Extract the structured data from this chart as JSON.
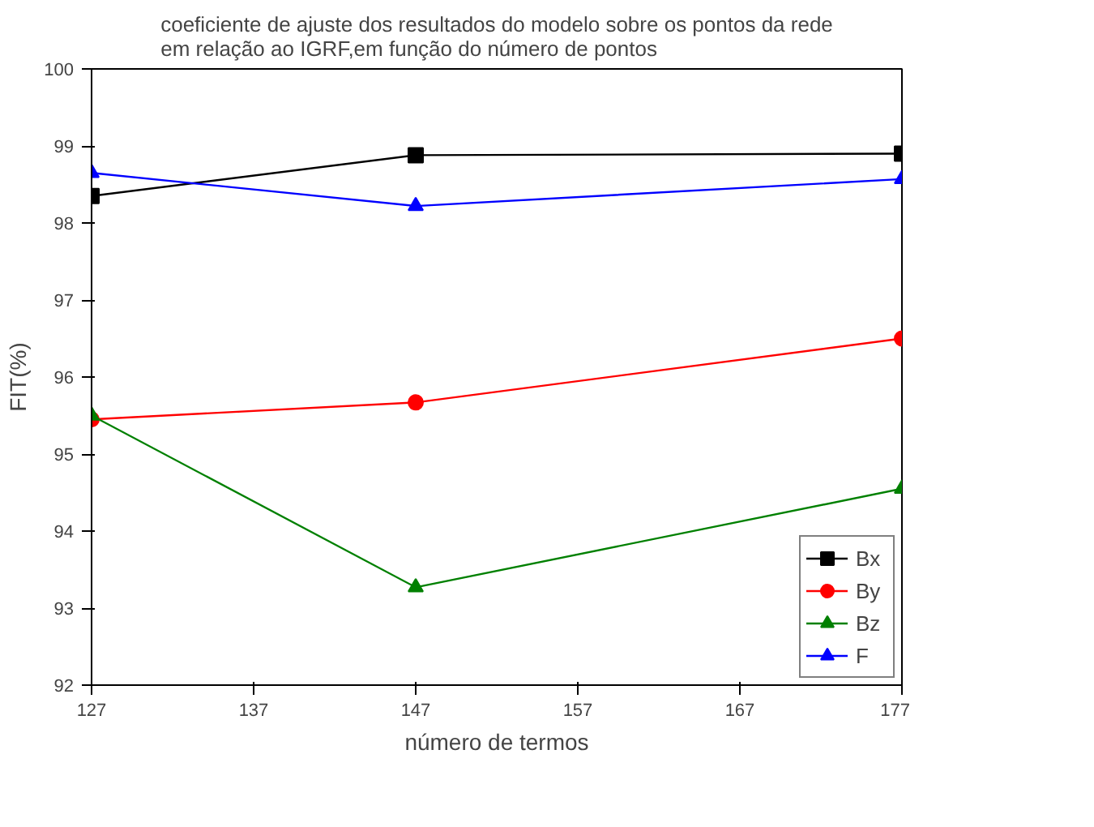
{
  "chart_data": {
    "type": "line",
    "title": "coeficiente de ajuste dos resultados do modelo sobre os pontos da rede\nem relação ao IGRF,em função do número de pontos",
    "xlabel": "número de termos",
    "ylabel": "FIT(%)",
    "x": [
      127,
      147,
      177
    ],
    "series": [
      {
        "name": "Bx",
        "color": "#000000",
        "marker": "square",
        "values": [
          98.35,
          98.88,
          98.9
        ]
      },
      {
        "name": "By",
        "color": "#ff0000",
        "marker": "circle",
        "values": [
          95.45,
          95.67,
          96.5
        ]
      },
      {
        "name": "Bz",
        "color": "#008000",
        "marker": "triangle",
        "values": [
          95.5,
          93.27,
          94.55
        ]
      },
      {
        "name": "F",
        "color": "#0000ff",
        "marker": "triangle",
        "values": [
          98.65,
          98.22,
          98.57
        ]
      }
    ],
    "xlim": [
      127,
      177
    ],
    "xticks": [
      127,
      137,
      147,
      157,
      167,
      177
    ],
    "ylim": [
      92,
      100
    ],
    "yticks": [
      92,
      93,
      94,
      95,
      96,
      97,
      98,
      99,
      100
    ],
    "grid": false,
    "legend": "bottom right",
    "line_style": "solid"
  }
}
